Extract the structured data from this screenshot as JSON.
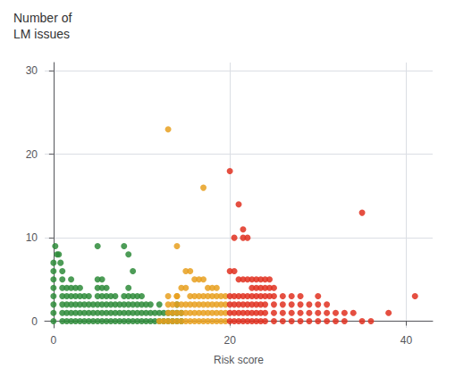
{
  "chart_data": {
    "type": "scatter",
    "title": "Number of",
    "subtitle": "LM issues",
    "xlabel": "Risk score",
    "xlim": [
      -1,
      43
    ],
    "ylim": [
      -0.8,
      31
    ],
    "xticks": [
      0,
      20,
      40
    ],
    "yticks": [
      0,
      10,
      20,
      30
    ],
    "grid": true,
    "series": [
      {
        "color": "#2e8b3a",
        "values": [
          [
            0.0,
            7
          ],
          [
            0.0,
            6
          ],
          [
            0.0,
            5
          ],
          [
            0.0,
            4
          ],
          [
            0.0,
            3
          ],
          [
            0.0,
            2
          ],
          [
            0.0,
            1
          ],
          [
            0.0,
            0
          ],
          [
            0.2,
            9
          ],
          [
            0.4,
            8
          ],
          [
            0.6,
            8
          ],
          [
            0.8,
            7
          ],
          [
            1.0,
            6
          ],
          [
            1.0,
            5
          ],
          [
            1.0,
            4
          ],
          [
            1.0,
            3
          ],
          [
            1.0,
            2
          ],
          [
            1.0,
            1
          ],
          [
            1.0,
            0
          ],
          [
            1.5,
            4
          ],
          [
            1.5,
            3
          ],
          [
            1.5,
            2
          ],
          [
            1.5,
            1
          ],
          [
            1.5,
            0
          ],
          [
            2.0,
            5
          ],
          [
            2.0,
            4
          ],
          [
            2.0,
            3
          ],
          [
            2.0,
            2
          ],
          [
            2.0,
            1
          ],
          [
            2.0,
            0
          ],
          [
            2.5,
            4
          ],
          [
            2.5,
            3
          ],
          [
            2.5,
            2
          ],
          [
            2.5,
            1
          ],
          [
            2.5,
            0
          ],
          [
            3.0,
            4
          ],
          [
            3.0,
            3
          ],
          [
            3.0,
            2
          ],
          [
            3.0,
            1
          ],
          [
            3.0,
            0
          ],
          [
            3.5,
            3
          ],
          [
            3.5,
            2
          ],
          [
            3.5,
            1
          ],
          [
            3.5,
            0
          ],
          [
            4.0,
            3
          ],
          [
            4.0,
            2
          ],
          [
            4.0,
            1
          ],
          [
            4.0,
            0
          ],
          [
            4.5,
            2
          ],
          [
            4.5,
            1
          ],
          [
            4.5,
            0
          ],
          [
            5.0,
            9
          ],
          [
            5.0,
            5
          ],
          [
            5.0,
            4
          ],
          [
            5.0,
            3
          ],
          [
            5.0,
            2
          ],
          [
            5.0,
            1
          ],
          [
            5.0,
            0
          ],
          [
            5.5,
            5
          ],
          [
            5.5,
            4
          ],
          [
            5.5,
            3
          ],
          [
            5.5,
            2
          ],
          [
            5.5,
            1
          ],
          [
            5.5,
            0
          ],
          [
            6.0,
            4
          ],
          [
            6.0,
            3
          ],
          [
            6.0,
            2
          ],
          [
            6.0,
            1
          ],
          [
            6.0,
            0
          ],
          [
            6.5,
            3
          ],
          [
            6.5,
            2
          ],
          [
            6.5,
            1
          ],
          [
            6.5,
            0
          ],
          [
            7.0,
            3
          ],
          [
            7.0,
            2
          ],
          [
            7.0,
            1
          ],
          [
            7.0,
            0
          ],
          [
            7.5,
            2
          ],
          [
            7.5,
            1
          ],
          [
            7.5,
            0
          ],
          [
            8.0,
            9
          ],
          [
            8.0,
            3
          ],
          [
            8.0,
            2
          ],
          [
            8.0,
            1
          ],
          [
            8.0,
            0
          ],
          [
            8.5,
            8
          ],
          [
            8.5,
            4
          ],
          [
            8.5,
            3
          ],
          [
            8.5,
            2
          ],
          [
            8.5,
            1
          ],
          [
            8.5,
            0
          ],
          [
            9.0,
            6
          ],
          [
            9.0,
            3
          ],
          [
            9.0,
            2
          ],
          [
            9.0,
            1
          ],
          [
            9.0,
            0
          ],
          [
            9.5,
            3
          ],
          [
            9.5,
            2
          ],
          [
            9.5,
            1
          ],
          [
            9.5,
            0
          ],
          [
            10.0,
            3
          ],
          [
            10.0,
            2
          ],
          [
            10.0,
            1
          ],
          [
            10.0,
            0
          ],
          [
            10.5,
            2
          ],
          [
            10.5,
            1
          ],
          [
            10.5,
            0
          ],
          [
            11.0,
            2
          ],
          [
            11.0,
            1
          ],
          [
            11.0,
            0
          ],
          [
            11.5,
            1
          ],
          [
            11.5,
            0
          ],
          [
            12.0,
            2
          ],
          [
            12.0,
            1
          ],
          [
            12.0,
            0
          ],
          [
            12.5,
            1
          ],
          [
            12.5,
            0
          ],
          [
            13.0,
            1
          ],
          [
            13.0,
            0
          ],
          [
            13.5,
            1
          ],
          [
            13.5,
            0
          ],
          [
            14.0,
            2
          ],
          [
            14.0,
            1
          ],
          [
            14.0,
            0
          ],
          [
            14.5,
            1
          ],
          [
            14.5,
            0
          ]
        ]
      },
      {
        "color": "#e8a020",
        "values": [
          [
            13.0,
            23
          ],
          [
            17.0,
            16
          ],
          [
            14.0,
            9
          ],
          [
            15.0,
            6
          ],
          [
            15.5,
            6
          ],
          [
            16.0,
            5
          ],
          [
            16.5,
            5
          ],
          [
            17.0,
            5
          ],
          [
            17.5,
            4
          ],
          [
            18.0,
            4
          ],
          [
            18.5,
            4
          ],
          [
            15.0,
            4
          ],
          [
            14.5,
            4
          ],
          [
            14.0,
            3
          ],
          [
            15.5,
            3
          ],
          [
            16.0,
            3
          ],
          [
            16.5,
            3
          ],
          [
            17.0,
            3
          ],
          [
            17.5,
            3
          ],
          [
            18.0,
            3
          ],
          [
            18.5,
            3
          ],
          [
            19.0,
            3
          ],
          [
            19.5,
            3
          ],
          [
            15.0,
            2
          ],
          [
            15.5,
            2
          ],
          [
            16.0,
            2
          ],
          [
            16.5,
            2
          ],
          [
            17.0,
            2
          ],
          [
            17.5,
            2
          ],
          [
            18.0,
            2
          ],
          [
            18.5,
            2
          ],
          [
            19.0,
            2
          ],
          [
            19.5,
            2
          ],
          [
            15.0,
            1
          ],
          [
            15.5,
            1
          ],
          [
            16.0,
            1
          ],
          [
            16.5,
            1
          ],
          [
            17.0,
            1
          ],
          [
            17.5,
            1
          ],
          [
            18.0,
            1
          ],
          [
            18.5,
            1
          ],
          [
            19.0,
            1
          ],
          [
            19.5,
            1
          ],
          [
            15.0,
            0
          ],
          [
            15.5,
            0
          ],
          [
            16.0,
            0
          ],
          [
            16.5,
            0
          ],
          [
            17.0,
            0
          ],
          [
            17.5,
            0
          ],
          [
            18.0,
            0
          ],
          [
            18.5,
            0
          ],
          [
            19.0,
            0
          ],
          [
            19.5,
            0
          ],
          [
            13.5,
            0
          ],
          [
            14.0,
            0
          ],
          [
            14.5,
            0
          ],
          [
            13.0,
            0
          ],
          [
            12.5,
            0
          ],
          [
            12.0,
            0
          ],
          [
            13.0,
            1
          ],
          [
            14.0,
            1
          ],
          [
            14.5,
            1
          ],
          [
            13.5,
            1
          ],
          [
            13.0,
            2
          ],
          [
            14.0,
            2
          ],
          [
            14.5,
            2
          ],
          [
            13.5,
            2
          ],
          [
            13.0,
            3
          ],
          [
            14.0,
            3
          ]
        ]
      },
      {
        "color": "#e03020",
        "values": [
          [
            20.0,
            18
          ],
          [
            20.5,
            10
          ],
          [
            21.5,
            10
          ],
          [
            21.0,
            14
          ],
          [
            21.5,
            11
          ],
          [
            22.0,
            10
          ],
          [
            22.5,
            5
          ],
          [
            23.0,
            5
          ],
          [
            23.5,
            5
          ],
          [
            24.0,
            5
          ],
          [
            24.5,
            5
          ],
          [
            35.0,
            13
          ],
          [
            20.0,
            6
          ],
          [
            20.5,
            6
          ],
          [
            21.0,
            5
          ],
          [
            21.5,
            5
          ],
          [
            22.0,
            5
          ],
          [
            22.5,
            4
          ],
          [
            23.0,
            4
          ],
          [
            23.5,
            4
          ],
          [
            24.0,
            4
          ],
          [
            24.5,
            4
          ],
          [
            25.0,
            4
          ],
          [
            20.0,
            3
          ],
          [
            20.5,
            3
          ],
          [
            21.0,
            3
          ],
          [
            21.5,
            3
          ],
          [
            22.0,
            3
          ],
          [
            22.5,
            3
          ],
          [
            23.0,
            3
          ],
          [
            23.5,
            3
          ],
          [
            24.0,
            3
          ],
          [
            24.5,
            3
          ],
          [
            25.0,
            3
          ],
          [
            26.0,
            3
          ],
          [
            27.0,
            3
          ],
          [
            28.0,
            3
          ],
          [
            30.0,
            3
          ],
          [
            20.0,
            2
          ],
          [
            20.5,
            2
          ],
          [
            21.0,
            2
          ],
          [
            21.5,
            2
          ],
          [
            22.0,
            2
          ],
          [
            22.5,
            2
          ],
          [
            23.0,
            2
          ],
          [
            23.5,
            2
          ],
          [
            24.0,
            2
          ],
          [
            25.0,
            2
          ],
          [
            26.0,
            2
          ],
          [
            27.0,
            2
          ],
          [
            28.0,
            2
          ],
          [
            29.0,
            2
          ],
          [
            30.0,
            2
          ],
          [
            31.0,
            2
          ],
          [
            20.0,
            1
          ],
          [
            20.5,
            1
          ],
          [
            21.0,
            1
          ],
          [
            21.5,
            1
          ],
          [
            22.0,
            1
          ],
          [
            22.5,
            1
          ],
          [
            23.0,
            1
          ],
          [
            23.5,
            1
          ],
          [
            24.0,
            1
          ],
          [
            25.0,
            1
          ],
          [
            26.0,
            1
          ],
          [
            27.0,
            1
          ],
          [
            28.0,
            1
          ],
          [
            29.0,
            1
          ],
          [
            30.0,
            1
          ],
          [
            31.0,
            1
          ],
          [
            32.0,
            1
          ],
          [
            33.0,
            1
          ],
          [
            34.0,
            1
          ],
          [
            20.0,
            0
          ],
          [
            20.5,
            0
          ],
          [
            21.0,
            0
          ],
          [
            21.5,
            0
          ],
          [
            22.0,
            0
          ],
          [
            22.5,
            0
          ],
          [
            23.0,
            0
          ],
          [
            23.5,
            0
          ],
          [
            24.0,
            0
          ],
          [
            25.0,
            0
          ],
          [
            26.0,
            0
          ],
          [
            27.0,
            0
          ],
          [
            28.0,
            0
          ],
          [
            29.0,
            0
          ],
          [
            30.0,
            0
          ],
          [
            31.0,
            0
          ],
          [
            32.0,
            0
          ],
          [
            33.0,
            0
          ],
          [
            35.0,
            0
          ],
          [
            36.0,
            0
          ],
          [
            38.0,
            1
          ],
          [
            41.0,
            3
          ]
        ]
      }
    ]
  }
}
